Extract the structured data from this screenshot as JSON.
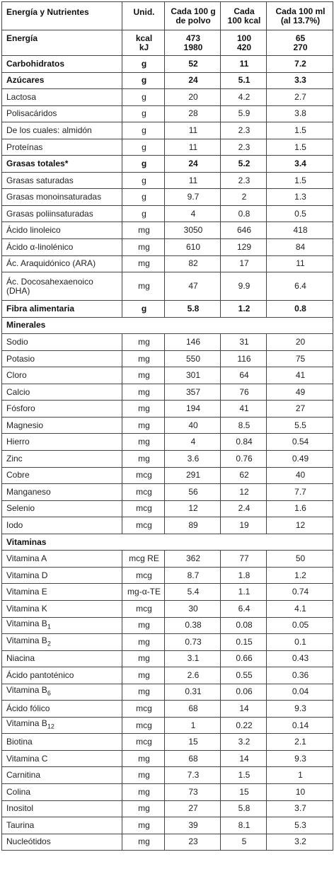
{
  "headers": [
    "Energía y Nutrientes",
    "Unid.",
    "Cada 100 g de polvo",
    "Cada 100 kcal",
    "Cada 100 ml (al 13.7%)"
  ],
  "header_lines": [
    [
      "Energía y Nutrientes"
    ],
    [
      "Unid."
    ],
    [
      "Cada 100 g",
      "de polvo"
    ],
    [
      "Cada",
      "100 kcal"
    ],
    [
      "Cada 100 ml",
      "(al 13.7%)"
    ]
  ],
  "energy": {
    "name": "Energía",
    "units": [
      "kcal",
      "kJ"
    ],
    "per100g": [
      "473",
      "1980"
    ],
    "per100kcal": [
      "100",
      "420"
    ],
    "per100ml": [
      "65",
      "270"
    ]
  },
  "rows": [
    {
      "name": "Carbohidratos",
      "unit": "g",
      "v1": "52",
      "v2": "11",
      "v3": "7.2",
      "bold": true
    },
    {
      "name": "Azúcares",
      "unit": "g",
      "v1": "24",
      "v2": "5.1",
      "v3": "3.3",
      "bold": true
    },
    {
      "name": "Lactosa",
      "unit": "g",
      "v1": "20",
      "v2": "4.2",
      "v3": "2.7"
    },
    {
      "name": "Polisacáridos",
      "unit": "g",
      "v1": "28",
      "v2": "5.9",
      "v3": "3.8"
    },
    {
      "name": "De los cuales: almidón",
      "unit": "g",
      "v1": "11",
      "v2": "2.3",
      "v3": "1.5"
    },
    {
      "name": "Proteínas",
      "unit": "g",
      "v1": "11",
      "v2": "2.3",
      "v3": "1.5"
    },
    {
      "name": "Grasas totales*",
      "unit": "g",
      "v1": "24",
      "v2": "5.2",
      "v3": "3.4",
      "bold": true
    },
    {
      "name": "Grasas saturadas",
      "unit": "g",
      "v1": "11",
      "v2": "2.3",
      "v3": "1.5"
    },
    {
      "name": "Grasas monoinsaturadas",
      "unit": "g",
      "v1": "9.7",
      "v2": "2",
      "v3": "1.3"
    },
    {
      "name": "Grasas poliinsaturadas",
      "unit": "g",
      "v1": "4",
      "v2": "0.8",
      "v3": "0.5"
    },
    {
      "name": "Ácido linoleico",
      "unit": "mg",
      "v1": "3050",
      "v2": "646",
      "v3": "418"
    },
    {
      "name": "Ácido α-linolénico",
      "unit": "mg",
      "v1": "610",
      "v2": "129",
      "v3": "84"
    },
    {
      "name": "Ác. Araquidónico (ARA)",
      "unit": "mg",
      "v1": "82",
      "v2": "17",
      "v3": "11"
    },
    {
      "name": "Ác. Docosahexaenoico (DHA)",
      "unit": "mg",
      "v1": "47",
      "v2": "9.9",
      "v3": "6.4",
      "tall": true
    },
    {
      "name": "Fibra alimentaria",
      "unit": "g",
      "v1": "5.8",
      "v2": "1.2",
      "v3": "0.8",
      "bold": true
    },
    {
      "name": "Minerales",
      "section": true
    },
    {
      "name": "Sodio",
      "unit": "mg",
      "v1": "146",
      "v2": "31",
      "v3": "20"
    },
    {
      "name": "Potasio",
      "unit": "mg",
      "v1": "550",
      "v2": "116",
      "v3": "75"
    },
    {
      "name": "Cloro",
      "unit": "mg",
      "v1": "301",
      "v2": "64",
      "v3": "41"
    },
    {
      "name": "Calcio",
      "unit": "mg",
      "v1": "357",
      "v2": "76",
      "v3": "49"
    },
    {
      "name": "Fósforo",
      "unit": "mg",
      "v1": "194",
      "v2": "41",
      "v3": "27"
    },
    {
      "name": "Magnesio",
      "unit": "mg",
      "v1": "40",
      "v2": "8.5",
      "v3": "5.5"
    },
    {
      "name": "Hierro",
      "unit": "mg",
      "v1": "4",
      "v2": "0.84",
      "v3": "0.54"
    },
    {
      "name": "Zinc",
      "unit": "mg",
      "v1": "3.6",
      "v2": "0.76",
      "v3": "0.49"
    },
    {
      "name": "Cobre",
      "unit": "mcg",
      "v1": "291",
      "v2": "62",
      "v3": "40"
    },
    {
      "name": "Manganeso",
      "unit": "mcg",
      "v1": "56",
      "v2": "12",
      "v3": "7.7"
    },
    {
      "name": "Selenio",
      "unit": "mcg",
      "v1": "12",
      "v2": "2.4",
      "v3": "1.6"
    },
    {
      "name": "Iodo",
      "unit": "mcg",
      "v1": "89",
      "v2": "19",
      "v3": "12"
    },
    {
      "name": "Vitaminas",
      "section": true
    },
    {
      "name": "Vitamina A",
      "unit": "mcg RE",
      "v1": "362",
      "v2": "77",
      "v3": "50"
    },
    {
      "name": "Vitamina D",
      "unit": "mcg",
      "v1": "8.7",
      "v2": "1.8",
      "v3": "1.2"
    },
    {
      "name": "Vitamina E",
      "unit": "mg-α-TE",
      "v1": "5.4",
      "v2": "1.1",
      "v3": "0.74"
    },
    {
      "name": "Vitamina K",
      "unit": "mcg",
      "v1": "30",
      "v2": "6.4",
      "v3": "4.1"
    },
    {
      "name": "Vitamina B",
      "sub": "1",
      "unit": "mg",
      "v1": "0.38",
      "v2": "0.08",
      "v3": "0.05"
    },
    {
      "name": "Vitamina B",
      "sub": "2",
      "unit": "mg",
      "v1": "0.73",
      "v2": "0.15",
      "v3": "0.1"
    },
    {
      "name": "Niacina",
      "unit": "mg",
      "v1": "3.1",
      "v2": "0.66",
      "v3": "0.43"
    },
    {
      "name": "Ácido pantoténico",
      "unit": "mg",
      "v1": "2.6",
      "v2": "0.55",
      "v3": "0.36"
    },
    {
      "name": "Vitamina B",
      "sub": "6",
      "unit": "mg",
      "v1": "0.31",
      "v2": "0.06",
      "v3": "0.04"
    },
    {
      "name": "Ácido fólico",
      "unit": "mcg",
      "v1": "68",
      "v2": "14",
      "v3": "9.3"
    },
    {
      "name": "Vitamina B",
      "sub": "12",
      "unit": "mcg",
      "v1": "1",
      "v2": "0.22",
      "v3": "0.14"
    },
    {
      "name": "Biotina",
      "unit": "mcg",
      "v1": "15",
      "v2": "3.2",
      "v3": "2.1"
    },
    {
      "name": "Vitamina C",
      "unit": "mg",
      "v1": "68",
      "v2": "14",
      "v3": "9.3"
    },
    {
      "name": "Carnitina",
      "unit": "mg",
      "v1": "7.3",
      "v2": "1.5",
      "v3": "1"
    },
    {
      "name": "Colina",
      "unit": "mg",
      "v1": "73",
      "v2": "15",
      "v3": "10"
    },
    {
      "name": "Inositol",
      "unit": "mg",
      "v1": "27",
      "v2": "5.8",
      "v3": "3.7"
    },
    {
      "name": "Taurina",
      "unit": "mg",
      "v1": "39",
      "v2": "8.1",
      "v3": "5.3"
    },
    {
      "name": "Nucleótidos",
      "unit": "mg",
      "v1": "23",
      "v2": "5",
      "v3": "3.2"
    }
  ]
}
